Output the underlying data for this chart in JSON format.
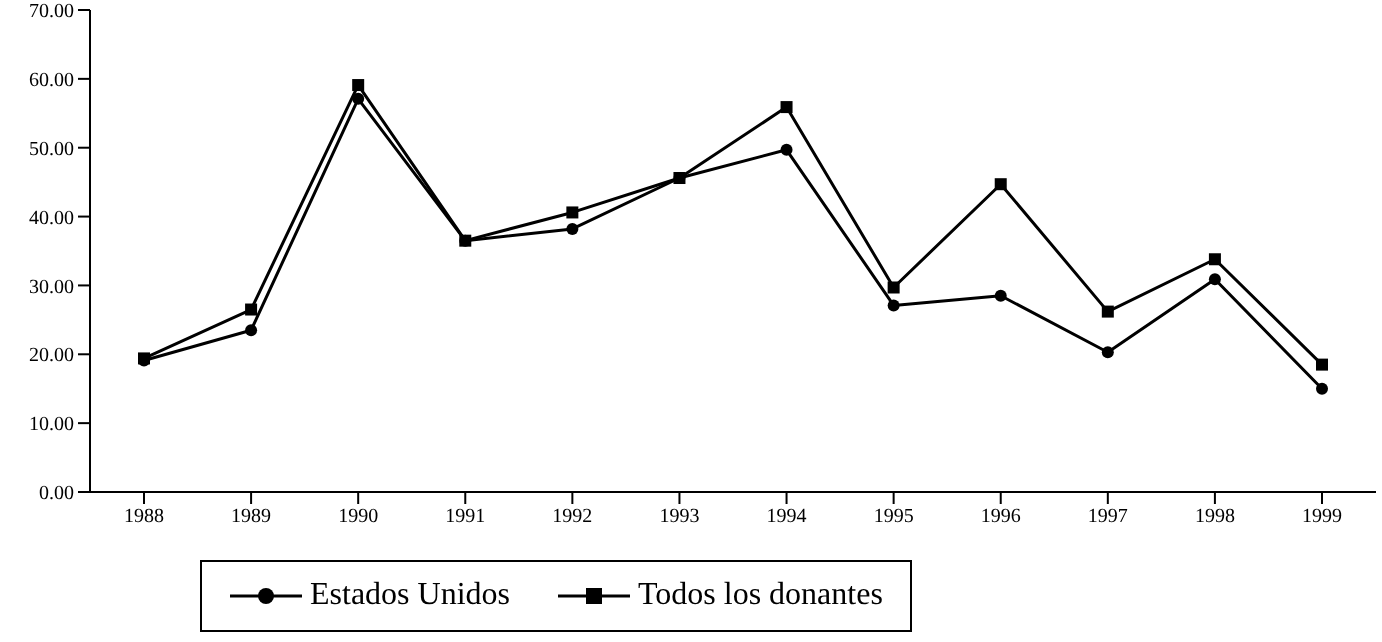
{
  "chart_data": {
    "type": "line",
    "categories": [
      "1988",
      "1989",
      "1990",
      "1991",
      "1992",
      "1993",
      "1994",
      "1995",
      "1996",
      "1997",
      "1998",
      "1999"
    ],
    "series": [
      {
        "name": "Estados Unidos",
        "color": "#000000",
        "marker": "circle",
        "values": [
          19.1,
          23.5,
          57.1,
          36.5,
          38.2,
          45.6,
          49.7,
          27.1,
          28.5,
          20.3,
          30.9,
          15.0
        ]
      },
      {
        "name": "Todos los donantes",
        "color": "#000000",
        "marker": "square",
        "values": [
          19.4,
          26.5,
          59.1,
          36.5,
          40.6,
          45.6,
          55.9,
          29.7,
          44.7,
          26.2,
          33.8,
          18.5
        ]
      }
    ],
    "ylim": [
      0,
      70
    ],
    "yticks": [
      {
        "value": 0,
        "label": "0.00"
      },
      {
        "value": 10,
        "label": "10.00"
      },
      {
        "value": 20,
        "label": "20.00"
      },
      {
        "value": 30,
        "label": "30.00"
      },
      {
        "value": 40,
        "label": "40.00"
      },
      {
        "value": 50,
        "label": "50.00"
      },
      {
        "value": 60,
        "label": "60.00"
      },
      {
        "value": 70,
        "label": "70.00"
      }
    ],
    "grid": false,
    "legend": "bottom"
  }
}
